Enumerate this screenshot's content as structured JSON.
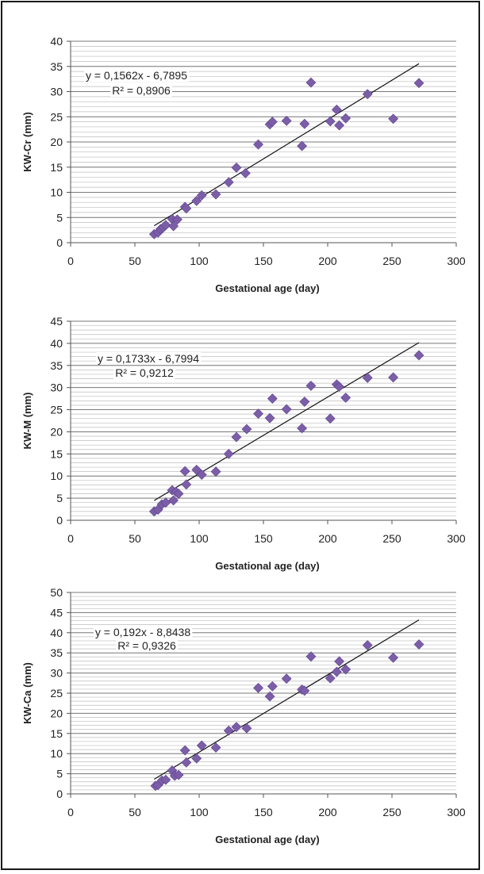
{
  "chart_data": [
    {
      "type": "scatter",
      "title": "",
      "xlabel": "Gestational age (day)",
      "ylabel": "KW-Cr (mm)",
      "xlim": [
        0,
        300
      ],
      "ylim": [
        0,
        40
      ],
      "x_ticks": [
        "0",
        "50",
        "100",
        "150",
        "200",
        "250",
        "300"
      ],
      "y_ticks": [
        "0",
        "5",
        "10",
        "15",
        "20",
        "25",
        "30",
        "35",
        "40"
      ],
      "grid": "horizontal",
      "marker_color": "#7b5ea7",
      "trendline": {
        "equation": "y = 0,1562x - 6,7895",
        "r2": "R² = 0,8906",
        "slope": 0.1562,
        "intercept": -6.7895,
        "x_range": [
          65,
          271
        ]
      },
      "series": [
        {
          "x": [
            65,
            68,
            70,
            72,
            74,
            79,
            80,
            83,
            89,
            90,
            98,
            102,
            113,
            123,
            129,
            136,
            146,
            155,
            157,
            168,
            180,
            182,
            187,
            202,
            207,
            209,
            214,
            231,
            251,
            271
          ],
          "y": [
            1.7,
            2.0,
            2.7,
            3.0,
            3.5,
            4.7,
            3.3,
            4.6,
            7.1,
            6.8,
            8.3,
            9.4,
            9.6,
            12.0,
            14.9,
            13.8,
            19.5,
            23.5,
            24.0,
            24.2,
            19.2,
            23.6,
            31.8,
            24.1,
            26.4,
            23.3,
            24.7,
            29.5,
            24.6,
            31.7
          ]
        }
      ]
    },
    {
      "type": "scatter",
      "title": "",
      "xlabel": "Gestational age (day)",
      "ylabel": "KW-M (mm)",
      "xlim": [
        0,
        300
      ],
      "ylim": [
        0,
        45
      ],
      "x_ticks": [
        "0",
        "50",
        "100",
        "150",
        "200",
        "250",
        "300"
      ],
      "y_ticks": [
        "0",
        "5",
        "10",
        "15",
        "20",
        "25",
        "30",
        "35",
        "40",
        "45"
      ],
      "grid": "horizontal",
      "marker_color": "#7b5ea7",
      "trendline": {
        "equation": "y = 0,1733x - 6,7994",
        "r2": "R² = 0,9212",
        "slope": 0.1733,
        "intercept": -6.7994,
        "x_range": [
          65,
          271
        ]
      },
      "series": [
        {
          "x": [
            65,
            68,
            71,
            74,
            79,
            80,
            82,
            84,
            89,
            90,
            98,
            102,
            113,
            123,
            129,
            137,
            146,
            155,
            157,
            168,
            180,
            182,
            187,
            202,
            207,
            209,
            214,
            231,
            251,
            271
          ],
          "y": [
            2.0,
            2.4,
            3.6,
            4.0,
            6.8,
            4.5,
            6.4,
            6.0,
            11.1,
            8.1,
            11.4,
            10.3,
            11.0,
            15.0,
            18.8,
            20.6,
            24.1,
            23.1,
            27.5,
            25.1,
            20.8,
            26.8,
            30.4,
            23.0,
            30.7,
            30.2,
            27.7,
            32.2,
            32.3,
            37.3
          ]
        }
      ]
    },
    {
      "type": "scatter",
      "title": "",
      "xlabel": "Gestational age (day)",
      "ylabel": "KW-Ca (mm)",
      "xlim": [
        0,
        300
      ],
      "ylim": [
        0,
        50
      ],
      "x_ticks": [
        "0",
        "50",
        "100",
        "150",
        "200",
        "250",
        "300"
      ],
      "y_ticks": [
        "0",
        "5",
        "10",
        "15",
        "20",
        "25",
        "30",
        "35",
        "40",
        "45",
        "50"
      ],
      "grid": "horizontal",
      "marker_color": "#7b5ea7",
      "trendline": {
        "equation": "y = 0,192x - 8,8438",
        "r2": "R² = 0,9326",
        "slope": 0.192,
        "intercept": -8.8438,
        "x_range": [
          65,
          271
        ]
      },
      "series": [
        {
          "x": [
            66,
            68,
            71,
            74,
            79,
            81,
            84,
            89,
            90,
            98,
            102,
            113,
            123,
            129,
            137,
            146,
            155,
            157,
            168,
            180,
            182,
            187,
            202,
            207,
            209,
            214,
            231,
            251,
            271
          ],
          "y": [
            2.0,
            2.2,
            3.3,
            3.5,
            5.8,
            4.5,
            4.7,
            10.8,
            7.8,
            8.8,
            12.0,
            11.5,
            15.7,
            16.6,
            16.3,
            26.3,
            24.2,
            26.7,
            28.6,
            25.9,
            25.6,
            34.1,
            28.7,
            30.3,
            32.9,
            30.9,
            36.9,
            33.8,
            37.1
          ]
        }
      ]
    }
  ]
}
